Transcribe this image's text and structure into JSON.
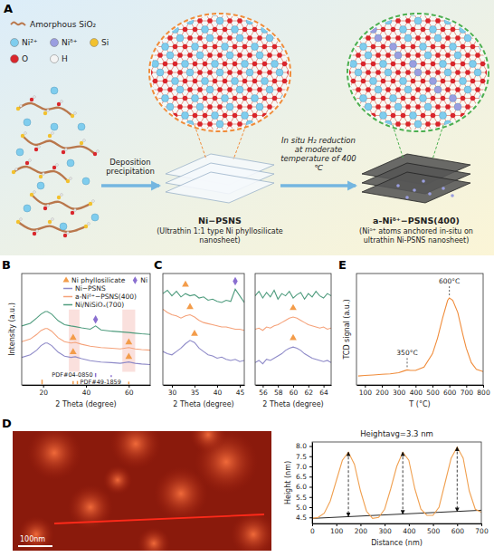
{
  "panel_letters": [
    "A",
    "B",
    "C",
    "D",
    "E"
  ],
  "panel_a": {
    "legend": [
      {
        "label": "Amorphous SiO₂",
        "color": "#b9774c"
      },
      {
        "label": "Ni²⁺",
        "color": "#7fcdee"
      },
      {
        "label": "Niᵟ⁺",
        "color": "#9a9ee0"
      },
      {
        "label": "Si",
        "color": "#f2c12e"
      },
      {
        "label": "O",
        "color": "#d9262c"
      },
      {
        "label": "H",
        "color": "#f4f4f4"
      }
    ],
    "step_1": "Deposition precipitation",
    "sheet_1_title": "Ni−PSNS",
    "sheet_1_caption": "(Ultrathin 1:1 type Ni phyllosilicate nanosheet)",
    "step_2": "In situ H₂ reduction at moderate temperature of 400 ℃",
    "sheet_2_title": "a-Niᵟ⁺−PSNS(400)",
    "sheet_2_caption": "(Niᵟ⁺ atoms anchored in-situ on ultrathin Ni-PSNS nanosheet)"
  },
  "afm_image": {
    "scale_bar": "100nm"
  },
  "chart_data": [
    {
      "type": "line",
      "x_label": "2 Theta (degree)",
      "y_label": "Intensity (a.u.)",
      "xlim": [
        10,
        70
      ],
      "xticks": [
        20,
        40,
        60
      ],
      "ylim": [
        -20,
        150
      ],
      "tick_labels": "x",
      "legend": "top right",
      "x": [
        10,
        14,
        17,
        19,
        21,
        22,
        24,
        27,
        30,
        33,
        35,
        38,
        42,
        44.5,
        47,
        52,
        56,
        60,
        63,
        66,
        70
      ],
      "series": [
        {
          "name": "Ni phyllosilicate",
          "type": "scatter",
          "marker": "triangle",
          "color": "#f39c4a",
          "x": [
            34,
            34,
            60,
            60
          ],
          "values": [
            52,
            30,
            45,
            23
          ]
        },
        {
          "name": "Ni",
          "type": "scatter",
          "marker": "diamond",
          "color": "#8a6fd0",
          "x": [
            44.5
          ],
          "values": [
            80
          ]
        },
        {
          "name": "Ni−PSNS",
          "type": "line",
          "color": "#8e8ac8",
          "values": [
            22,
            26,
            33,
            40,
            44,
            44,
            40,
            30,
            24,
            22,
            23,
            20,
            17,
            16,
            15,
            14,
            13,
            15,
            13,
            12,
            11
          ]
        },
        {
          "name": "a-Niᵟ⁺−PSNS(400)",
          "type": "line",
          "color": "#f5a27a",
          "values": [
            46,
            50,
            57,
            63,
            66,
            66,
            62,
            52,
            46,
            44,
            45,
            42,
            39,
            38,
            37,
            36,
            35,
            37,
            35,
            34,
            33
          ]
        },
        {
          "name": "Ni/NiSiOₓ(700)",
          "type": "line",
          "color": "#4f9c7e",
          "values": [
            70,
            74,
            82,
            88,
            92,
            92,
            88,
            78,
            72,
            70,
            69,
            67,
            65,
            70,
            64,
            62,
            61,
            60,
            59,
            58,
            57
          ]
        }
      ],
      "reference_patterns": [
        {
          "name": "PDF#04-0850",
          "color": "#8a6fd0",
          "positions": [
            44.5,
            51.8
          ],
          "base": -8,
          "heights": [
            6,
            3
          ]
        },
        {
          "name": "PDF#49-1859",
          "color": "#f39c4a",
          "positions": [
            19.5,
            34,
            36,
            60
          ],
          "base": -19,
          "heights": [
            7,
            5,
            5,
            4
          ]
        }
      ],
      "shaded_ranges": [
        {
          "x": [
            32,
            37
          ],
          "y": [
            0,
            95
          ]
        },
        {
          "x": [
            57,
            63
          ],
          "y": [
            0,
            95
          ]
        }
      ]
    },
    {
      "type": "line",
      "x_label": "2 Theta (degree)",
      "xlim": [
        28,
        46
      ],
      "xticks": [
        30,
        35,
        40,
        45
      ],
      "ylim": [
        0,
        100
      ],
      "tick_labels": "x",
      "x": [
        28,
        29,
        30,
        31,
        32,
        33,
        34,
        35,
        36,
        37,
        38,
        39,
        40,
        41,
        42,
        43,
        44,
        45,
        46
      ],
      "series": [
        {
          "type": "line",
          "color": "#4f9c7e",
          "values": [
            82,
            85,
            80,
            84,
            79,
            82,
            80,
            81,
            78,
            79,
            76,
            77,
            75,
            74,
            76,
            75,
            86,
            80,
            74
          ]
        },
        {
          "type": "line",
          "color": "#f5a27a",
          "values": [
            68,
            65,
            63,
            62,
            60,
            62,
            63,
            61,
            58,
            56,
            55,
            54,
            53,
            52,
            52,
            51,
            50,
            50,
            49
          ]
        },
        {
          "type": "line",
          "color": "#8e8ac8",
          "values": [
            30,
            28,
            27,
            30,
            33,
            37,
            40,
            38,
            33,
            30,
            27,
            26,
            24,
            25,
            23,
            22,
            23,
            21,
            22
          ]
        },
        {
          "type": "scatter",
          "marker": "triangle",
          "color": "#f39c4a",
          "x": [
            33,
            34,
            35
          ],
          "values": [
            90,
            70,
            46
          ]
        },
        {
          "type": "scatter",
          "marker": "diamond",
          "color": "#8a6fd0",
          "x": [
            44
          ],
          "values": [
            93
          ]
        }
      ]
    },
    {
      "type": "line",
      "x_label": "2 Theta (degree)",
      "xlim": [
        55,
        65
      ],
      "xticks": [
        56,
        58,
        60,
        62,
        64
      ],
      "ylim": [
        0,
        100
      ],
      "tick_labels": "x",
      "x": [
        55,
        55.5,
        56,
        56.5,
        57,
        57.5,
        58,
        58.5,
        59,
        59.5,
        60,
        60.5,
        61,
        61.5,
        62,
        62.5,
        63,
        63.5,
        64,
        64.5,
        65
      ],
      "series": [
        {
          "type": "line",
          "color": "#4f9c7e",
          "values": [
            80,
            84,
            78,
            83,
            79,
            85,
            77,
            82,
            80,
            84,
            78,
            81,
            83,
            77,
            82,
            79,
            84,
            80,
            78,
            82,
            80
          ]
        },
        {
          "type": "line",
          "color": "#f5a27a",
          "values": [
            50,
            51,
            49,
            52,
            51,
            53,
            54,
            56,
            58,
            60,
            61,
            60,
            58,
            56,
            54,
            53,
            52,
            51,
            52,
            50,
            51
          ]
        },
        {
          "type": "line",
          "color": "#8e8ac8",
          "values": [
            20,
            22,
            19,
            23,
            22,
            24,
            26,
            28,
            31,
            33,
            34,
            33,
            31,
            28,
            26,
            24,
            23,
            22,
            21,
            22,
            20
          ]
        },
        {
          "type": "scatter",
          "marker": "triangle",
          "color": "#f39c4a",
          "x": [
            60,
            60
          ],
          "values": [
            69,
            42
          ]
        }
      ]
    },
    {
      "type": "line",
      "title": "Heightavg=3.3 nm",
      "x_label": "Distance (nm)",
      "y_label": "Height (nm)",
      "xlim": [
        0,
        700
      ],
      "xticks": [
        0,
        100,
        200,
        300,
        400,
        500,
        600,
        700
      ],
      "ylim": [
        4.2,
        8.2
      ],
      "yticks": [
        4.5,
        {
          "value": 5,
          "label": "5.0"
        },
        5.5,
        {
          "value": 6,
          "label": "6.0"
        },
        6.5,
        {
          "value": 7,
          "label": "7.0"
        },
        7.5,
        {
          "value": 8,
          "label": "8.0"
        }
      ],
      "x": [
        0,
        25,
        50,
        75,
        100,
        125,
        150,
        175,
        200,
        225,
        250,
        275,
        300,
        325,
        350,
        375,
        400,
        425,
        450,
        475,
        500,
        525,
        550,
        575,
        600,
        625,
        650,
        675,
        700
      ],
      "series": [
        {
          "type": "line",
          "color": "#f0a050",
          "values": [
            4.45,
            4.5,
            4.7,
            5.3,
            6.3,
            7.3,
            7.7,
            7.1,
            5.8,
            4.8,
            4.45,
            4.5,
            4.9,
            5.9,
            7.0,
            7.7,
            7.3,
            5.9,
            4.9,
            4.6,
            4.6,
            5.0,
            6.2,
            7.4,
            7.95,
            7.4,
            5.8,
            4.9,
            4.75
          ]
        }
      ],
      "baseline": {
        "x": [
          0,
          700
        ],
        "values": [
          4.45,
          4.85
        ]
      },
      "arrows": {
        "x": [
          150,
          375,
          600
        ],
        "from": [
          7.7,
          7.7,
          7.95
        ],
        "to": [
          4.54,
          4.66,
          4.79
        ]
      }
    },
    {
      "type": "line",
      "x_label": "T (°C)",
      "y_label": "TCD signal (a.u.)",
      "xlim": [
        50,
        800
      ],
      "xticks": [
        100,
        200,
        300,
        400,
        500,
        600,
        700,
        800
      ],
      "ylim": [
        0,
        100
      ],
      "tick_labels": "x",
      "x": [
        60,
        100,
        150,
        200,
        250,
        300,
        330,
        350,
        370,
        400,
        450,
        500,
        530,
        560,
        590,
        600,
        620,
        650,
        680,
        700,
        730,
        760,
        800
      ],
      "series": [
        {
          "type": "line",
          "color": "#f08c3a",
          "values": [
            8,
            8.5,
            9,
            9.5,
            10,
            11,
            12.5,
            13.5,
            13,
            13,
            16,
            28,
            42,
            60,
            76,
            78,
            76,
            65,
            45,
            33,
            20,
            14,
            12
          ]
        }
      ],
      "annotations": [
        {
          "text": "350°C",
          "x": 350,
          "y": 13.5
        },
        {
          "text": "600°C",
          "x": 600,
          "y": 78
        }
      ]
    }
  ]
}
